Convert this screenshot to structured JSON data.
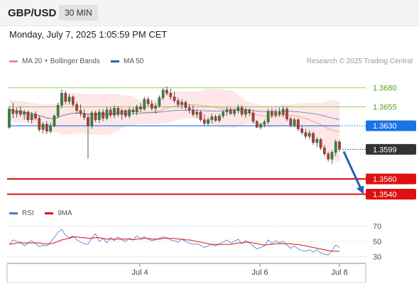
{
  "header": {
    "symbol": "GBP/USD",
    "timeframe": "30 MIN",
    "datetime": "Monday, July 7, 2025 1:05:59 PM CET",
    "credit": "Research © 2025 Trading Central"
  },
  "legend": {
    "items": [
      {
        "label": "MA 20 + Bollinger Bands",
        "color": "#f48a8a"
      },
      {
        "label": "MA 50",
        "color": "#2e5fa6"
      }
    ]
  },
  "chart_data": [
    {
      "type": "candlestick",
      "x_ticks": [
        "Jul 4",
        "Jul 6",
        "Jul 8"
      ],
      "levels": [
        {
          "value": 1.368,
          "label": "1.3680",
          "kind": "resistance",
          "color": "#8bc34a"
        },
        {
          "value": 1.3655,
          "label": "1.3655",
          "kind": "resistance",
          "color": "#8bc34a"
        },
        {
          "value": 1.363,
          "label": "1.3630",
          "kind": "pivot",
          "color": "#1a73e8"
        },
        {
          "value": 1.3599,
          "label": "1.3599",
          "kind": "last-price",
          "color": "#333333"
        },
        {
          "value": 1.356,
          "label": "1.3560",
          "kind": "support",
          "color": "#e01010"
        },
        {
          "value": 1.354,
          "label": "1.3540",
          "kind": "support",
          "color": "#e01010"
        }
      ],
      "forecast": {
        "from": 1.3599,
        "to": 1.354
      },
      "ylim": [
        1.3532,
        1.3704
      ],
      "candles": [
        [
          1.3628,
          1.3655,
          1.3626,
          1.3652
        ],
        [
          1.3652,
          1.366,
          1.364,
          1.3646
        ],
        [
          1.3646,
          1.3654,
          1.3641,
          1.365
        ],
        [
          1.365,
          1.3656,
          1.3642,
          1.3645
        ],
        [
          1.3645,
          1.3651,
          1.3638,
          1.3648
        ],
        [
          1.3648,
          1.365,
          1.3635,
          1.3638
        ],
        [
          1.3638,
          1.3648,
          1.3633,
          1.3645
        ],
        [
          1.3645,
          1.3649,
          1.3637,
          1.364
        ],
        [
          1.364,
          1.3643,
          1.3622,
          1.3625
        ],
        [
          1.3625,
          1.3635,
          1.362,
          1.3632
        ],
        [
          1.3632,
          1.3636,
          1.3619,
          1.3623
        ],
        [
          1.3623,
          1.3634,
          1.362,
          1.363
        ],
        [
          1.363,
          1.3645,
          1.3628,
          1.3643
        ],
        [
          1.3643,
          1.366,
          1.364,
          1.3657
        ],
        [
          1.3657,
          1.3678,
          1.3653,
          1.3673
        ],
        [
          1.3673,
          1.3676,
          1.3658,
          1.3662
        ],
        [
          1.3662,
          1.3672,
          1.3658,
          1.3668
        ],
        [
          1.3668,
          1.367,
          1.3655,
          1.3658
        ],
        [
          1.3658,
          1.3662,
          1.3646,
          1.365
        ],
        [
          1.365,
          1.3658,
          1.3642,
          1.3646
        ],
        [
          1.3646,
          1.3652,
          1.3638,
          1.3641
        ],
        [
          1.3641,
          1.3646,
          1.3587,
          1.363
        ],
        [
          1.363,
          1.365,
          1.3626,
          1.3647
        ],
        [
          1.3647,
          1.365,
          1.3635,
          1.3638
        ],
        [
          1.3638,
          1.3652,
          1.3634,
          1.3648
        ],
        [
          1.3648,
          1.3652,
          1.3636,
          1.364
        ],
        [
          1.364,
          1.3655,
          1.3637,
          1.3651
        ],
        [
          1.3651,
          1.3655,
          1.3641,
          1.3644
        ],
        [
          1.3644,
          1.3657,
          1.364,
          1.3653
        ],
        [
          1.3653,
          1.3656,
          1.3642,
          1.3645
        ],
        [
          1.3645,
          1.3653,
          1.3638,
          1.365
        ],
        [
          1.365,
          1.3652,
          1.364,
          1.3643
        ],
        [
          1.3643,
          1.3654,
          1.364,
          1.3651
        ],
        [
          1.3651,
          1.3654,
          1.3645,
          1.3648
        ],
        [
          1.3648,
          1.3658,
          1.3644,
          1.3655
        ],
        [
          1.3655,
          1.366,
          1.3648,
          1.3652
        ],
        [
          1.3652,
          1.3668,
          1.365,
          1.3665
        ],
        [
          1.3665,
          1.3668,
          1.3655,
          1.3659
        ],
        [
          1.3659,
          1.3664,
          1.365,
          1.3653
        ],
        [
          1.3653,
          1.366,
          1.3646,
          1.3656
        ],
        [
          1.3656,
          1.367,
          1.3654,
          1.3667
        ],
        [
          1.3667,
          1.368,
          1.3664,
          1.3677
        ],
        [
          1.3677,
          1.3682,
          1.367,
          1.3673
        ],
        [
          1.3673,
          1.3679,
          1.3664,
          1.3668
        ],
        [
          1.3668,
          1.3675,
          1.366,
          1.3663
        ],
        [
          1.3663,
          1.3667,
          1.3654,
          1.3658
        ],
        [
          1.3658,
          1.3665,
          1.3652,
          1.3661
        ],
        [
          1.3661,
          1.3663,
          1.365,
          1.3654
        ],
        [
          1.3654,
          1.3659,
          1.3646,
          1.3651
        ],
        [
          1.3651,
          1.3657,
          1.3642,
          1.3645
        ],
        [
          1.3645,
          1.3652,
          1.364,
          1.3648
        ],
        [
          1.3648,
          1.365,
          1.3635,
          1.3638
        ],
        [
          1.3638,
          1.3645,
          1.363,
          1.3633
        ],
        [
          1.3633,
          1.3641,
          1.363,
          1.3638
        ],
        [
          1.3638,
          1.3646,
          1.3633,
          1.3642
        ],
        [
          1.3642,
          1.3645,
          1.3635,
          1.3637
        ],
        [
          1.3637,
          1.3646,
          1.3634,
          1.3643
        ],
        [
          1.3643,
          1.3651,
          1.364,
          1.3648
        ],
        [
          1.3648,
          1.3655,
          1.3643,
          1.3651
        ],
        [
          1.3651,
          1.3654,
          1.3644,
          1.3646
        ],
        [
          1.3646,
          1.3653,
          1.3642,
          1.365
        ],
        [
          1.365,
          1.3658,
          1.3646,
          1.3654
        ],
        [
          1.3654,
          1.3657,
          1.3642,
          1.3645
        ],
        [
          1.3645,
          1.3654,
          1.364,
          1.3651
        ],
        [
          1.3651,
          1.3653,
          1.3643,
          1.3647
        ],
        [
          1.3647,
          1.365,
          1.3633,
          1.3636
        ],
        [
          1.3636,
          1.3637,
          1.3627,
          1.3628
        ],
        [
          1.3628,
          1.3634,
          1.3625,
          1.3632
        ],
        [
          1.3632,
          1.3638,
          1.3628,
          1.3635
        ],
        [
          1.3635,
          1.3652,
          1.3632,
          1.3649
        ],
        [
          1.3649,
          1.3653,
          1.364,
          1.3644
        ],
        [
          1.3644,
          1.3652,
          1.3641,
          1.3648
        ],
        [
          1.3648,
          1.3654,
          1.3642,
          1.3645
        ],
        [
          1.3645,
          1.3656,
          1.3641,
          1.3652
        ],
        [
          1.3652,
          1.3655,
          1.3636,
          1.3639
        ],
        [
          1.3639,
          1.3642,
          1.3628,
          1.3631
        ],
        [
          1.3631,
          1.3641,
          1.3628,
          1.3638
        ],
        [
          1.3638,
          1.364,
          1.3623,
          1.3626
        ],
        [
          1.3626,
          1.363,
          1.3618,
          1.3621
        ],
        [
          1.3621,
          1.3626,
          1.3613,
          1.3616
        ],
        [
          1.3616,
          1.3624,
          1.3612,
          1.362
        ],
        [
          1.362,
          1.3622,
          1.3605,
          1.3608
        ],
        [
          1.3608,
          1.3615,
          1.3602,
          1.3612
        ],
        [
          1.3612,
          1.3614,
          1.3598,
          1.3601
        ],
        [
          1.3601,
          1.3605,
          1.359,
          1.3593
        ],
        [
          1.3593,
          1.3596,
          1.3583,
          1.3586
        ],
        [
          1.3586,
          1.3598,
          1.358,
          1.3595
        ],
        [
          1.3595,
          1.3612,
          1.359,
          1.3609
        ],
        [
          1.3609,
          1.3611,
          1.3596,
          1.3599
        ]
      ]
    },
    {
      "type": "line",
      "legend": [
        {
          "label": "RSI",
          "color": "#4a78c8"
        },
        {
          "label": "9MA",
          "color": "#e01010"
        }
      ],
      "y_ticks": [
        70,
        50,
        30
      ],
      "ylim": [
        20,
        80
      ],
      "series": [
        {
          "name": "RSI",
          "values": [
            46,
            52,
            50,
            49,
            44,
            48,
            51,
            47,
            43,
            45,
            44,
            49,
            55,
            62,
            66,
            58,
            55,
            57,
            52,
            49,
            47,
            46,
            55,
            60,
            50,
            54,
            48,
            55,
            51,
            56,
            52,
            50,
            54,
            52,
            57,
            54,
            56,
            53,
            51,
            52,
            54,
            56,
            55,
            52,
            51,
            49,
            53,
            50,
            48,
            46,
            47,
            45,
            42,
            44,
            46,
            44,
            47,
            49,
            52,
            48,
            50,
            53,
            47,
            51,
            48,
            44,
            40,
            42,
            44,
            52,
            47,
            51,
            48,
            50,
            45,
            41,
            44,
            40,
            38,
            37,
            39,
            36,
            39,
            35,
            33,
            32,
            38,
            45,
            42
          ]
        },
        {
          "name": "9MA",
          "values": [
            46,
            47,
            48,
            48,
            48,
            48,
            48,
            48,
            48,
            47,
            47,
            47,
            48,
            50,
            52,
            53,
            54,
            56,
            56,
            55,
            55,
            54,
            54,
            55,
            55,
            54,
            53,
            53,
            53,
            53,
            53,
            53,
            53,
            52,
            53,
            53,
            54,
            54,
            53,
            53,
            53,
            54,
            54,
            54,
            54,
            53,
            53,
            52,
            52,
            51,
            50,
            49,
            48,
            47,
            46,
            46,
            46,
            46,
            46,
            46,
            47,
            48,
            48,
            49,
            49,
            48,
            47,
            46,
            45,
            46,
            46,
            47,
            47,
            47,
            47,
            47,
            46,
            46,
            45,
            44,
            43,
            42,
            41,
            40,
            39,
            38,
            37,
            37,
            37
          ]
        }
      ]
    }
  ]
}
